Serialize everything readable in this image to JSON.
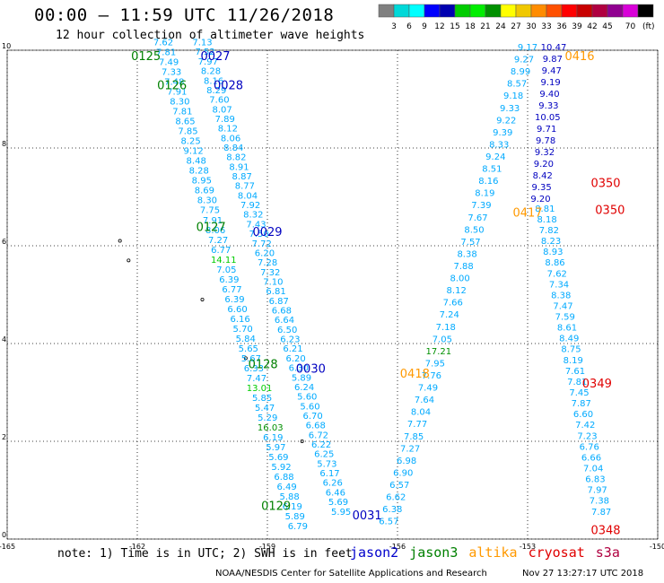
{
  "title": "00:00 – 11:59 UTC 11/26/2018",
  "subtitle": "12 hour collection of altimeter wave heights",
  "colorbar": {
    "unit": "(ft)",
    "colors": [
      "#808080",
      "#00d8d8",
      "#00ffff",
      "#0000ff",
      "#0000b0",
      "#00cc00",
      "#00ee00",
      "#009000",
      "#ffff00",
      "#f0c800",
      "#ff8c00",
      "#ff5000",
      "#ff0000",
      "#c80000",
      "#b00040",
      "#900090",
      "#d800d8",
      "#000000"
    ],
    "labels": [
      "3",
      "6",
      "9",
      "12",
      "15",
      "18",
      "21",
      "24",
      "27",
      "30",
      "33",
      "36",
      "39",
      "42",
      "45",
      "70"
    ]
  },
  "axes": {
    "xlim": [
      -165,
      -150
    ],
    "ylim": [
      0,
      10
    ],
    "xticks": [
      "-165",
      "-162",
      "-159",
      "-156",
      "-153",
      "-150"
    ],
    "yticks": [
      "0",
      "2",
      "4",
      "6",
      "8",
      "10"
    ]
  },
  "tracks": [
    {
      "sat": "jason3",
      "color": "#00aaff",
      "start": [
        -161.4,
        10.1
      ],
      "end": [
        -158.3,
        0.2
      ],
      "values": [
        "7.62",
        "7.81",
        "7.49",
        "7.33",
        "7.48",
        "7.91",
        "8.30",
        "7.81",
        "8.65",
        "7.85",
        "8.25",
        "9.12",
        "8.48",
        "8.28",
        "8.95",
        "8.69",
        "8.30",
        "7.75",
        "7.91",
        "8.06",
        "7.27",
        "6.77",
        "14.11",
        "7.05",
        "6.39",
        "6.77",
        "6.39",
        "6.60",
        "6.16",
        "5.70",
        "5.84",
        "5.65",
        "5.67",
        "6.33",
        "7.47",
        "13.01",
        "5.85",
        "5.47",
        "5.29",
        "16.03",
        "6.19",
        "5.97",
        "5.69",
        "5.92",
        "6.88",
        "6.49",
        "5.88",
        "6.19",
        "5.89",
        "6.79"
      ]
    },
    {
      "sat": "jason2",
      "color": "#00aaff",
      "start": [
        -160.5,
        10.1
      ],
      "end": [
        -157.3,
        0.5
      ],
      "values": [
        "7.13",
        "7.52",
        "7.97",
        "8.28",
        "8.16",
        "8.29",
        "7.60",
        "8.07",
        "7.89",
        "8.12",
        "8.06",
        "8.84",
        "8.82",
        "8.91",
        "8.87",
        "8.77",
        "8.04",
        "7.92",
        "8.32",
        "7.43",
        "7.50",
        "7.72",
        "6.20",
        "7.28",
        "7.32",
        "7.10",
        "6.81",
        "6.87",
        "6.68",
        "6.64",
        "6.50",
        "6.23",
        "6.21",
        "6.20",
        "6.30",
        "5.89",
        "6.24",
        "5.60",
        "5.60",
        "6.70",
        "6.68",
        "6.72",
        "6.22",
        "6.25",
        "5.73",
        "6.17",
        "6.26",
        "6.46",
        "5.69",
        "5.95"
      ]
    },
    {
      "sat": "jason3",
      "color": "#00aaff",
      "start": [
        -153.0,
        10.0
      ],
      "end": [
        -156.2,
        0.3
      ],
      "values": [
        "9.17",
        "9.27",
        "8.99",
        "8.57",
        "9.18",
        "9.33",
        "9.22",
        "9.39",
        "8.33",
        "9.24",
        "8.51",
        "8.16",
        "8.19",
        "7.39",
        "7.67",
        "8.50",
        "7.57",
        "8.38",
        "7.88",
        "8.00",
        "8.12",
        "7.66",
        "7.24",
        "7.18",
        "7.05",
        "17.21",
        "7.95",
        "7.76",
        "7.49",
        "7.64",
        "8.04",
        "7.77",
        "7.85",
        "7.27",
        "6.98",
        "6.90",
        "6.57",
        "6.62",
        "6.38",
        "6.57"
      ]
    },
    {
      "sat": "saral",
      "color": "#0000c0",
      "start": [
        -152.4,
        10.0
      ],
      "end": [
        -152.7,
        6.9
      ],
      "values": [
        "10.47",
        "9.87",
        "9.47",
        "9.19",
        "9.40",
        "9.33",
        "10.05",
        "9.71",
        "9.78",
        "9.32",
        "9.20",
        "8.42",
        "9.35",
        "9.20"
      ]
    },
    {
      "sat": "s3a",
      "color": "#00aaff",
      "start": [
        -152.6,
        6.7
      ],
      "end": [
        -151.3,
        0.5
      ],
      "values": [
        "8.81",
        "8.18",
        "7.82",
        "8.23",
        "8.93",
        "8.86",
        "7.62",
        "7.34",
        "8.38",
        "7.47",
        "7.59",
        "8.61",
        "8.49",
        "8.75",
        "8.19",
        "7.61",
        "7.81",
        "7.45",
        "7.87",
        "6.60",
        "7.42",
        "7.23",
        "6.76",
        "6.66",
        "7.04",
        "6.83",
        "7.97",
        "7.38",
        "7.87"
      ]
    }
  ],
  "time_labels": [
    {
      "t": "0125",
      "color": "#008000",
      "x": -161.8,
      "y": 9.8
    },
    {
      "t": "0027",
      "color": "#0000c0",
      "x": -160.2,
      "y": 9.8
    },
    {
      "t": "0126",
      "color": "#008000",
      "x": -161.2,
      "y": 9.2
    },
    {
      "t": "0028",
      "color": "#0000c0",
      "x": -159.9,
      "y": 9.2
    },
    {
      "t": "0127",
      "color": "#008000",
      "x": -160.3,
      "y": 6.3
    },
    {
      "t": "0029",
      "color": "#0000c0",
      "x": -159.0,
      "y": 6.2
    },
    {
      "t": "0128",
      "color": "#008000",
      "x": -159.1,
      "y": 3.5
    },
    {
      "t": "0030",
      "color": "#0000c0",
      "x": -158.0,
      "y": 3.4
    },
    {
      "t": "0129",
      "color": "#008000",
      "x": -158.8,
      "y": 0.6
    },
    {
      "t": "0031",
      "color": "#0000c0",
      "x": -156.7,
      "y": 0.4
    },
    {
      "t": "0416",
      "color": "#ff9900",
      "x": -151.8,
      "y": 9.8
    },
    {
      "t": "0417",
      "color": "#ff9900",
      "x": -153.0,
      "y": 6.6
    },
    {
      "t": "0418",
      "color": "#ff9900",
      "x": -155.6,
      "y": 3.3
    },
    {
      "t": "0350",
      "color": "#e00000",
      "x": -151.2,
      "y": 7.2
    },
    {
      "t": "0350",
      "color": "#e00000",
      "x": -151.1,
      "y": 6.65
    },
    {
      "t": "0349",
      "color": "#e00000",
      "x": -151.4,
      "y": 3.1
    },
    {
      "t": "0348",
      "color": "#e00000",
      "x": -151.2,
      "y": 0.1
    }
  ],
  "note": "note: 1) Time is in UTC; 2) SWH is in feet",
  "legend": [
    {
      "name": "jason2",
      "color": "#0000cc"
    },
    {
      "name": "jason3",
      "color": "#008000"
    },
    {
      "name": "altika",
      "color": "#ff9900"
    },
    {
      "name": "cryosat",
      "color": "#e00000"
    },
    {
      "name": "s3a",
      "color": "#b00040"
    }
  ],
  "credit": "NOAA/NESDIS Center for Satellite Applications and Research",
  "timestamp": "Nov 27 13:27:17 UTC 2018"
}
